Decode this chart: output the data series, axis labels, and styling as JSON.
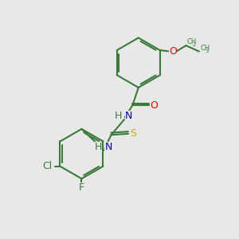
{
  "bg_color": "#e8e8e8",
  "bond_color": "#3a7a3a",
  "bond_width": 1.5,
  "atom_colors": {
    "O": "#ff0000",
    "N": "#0000cd",
    "S": "#ccaa00",
    "Cl": "#3a7a3a",
    "F": "#3a7a3a",
    "H": "#3a7a3a"
  },
  "font_size": 9,
  "font_size_sub": 7
}
